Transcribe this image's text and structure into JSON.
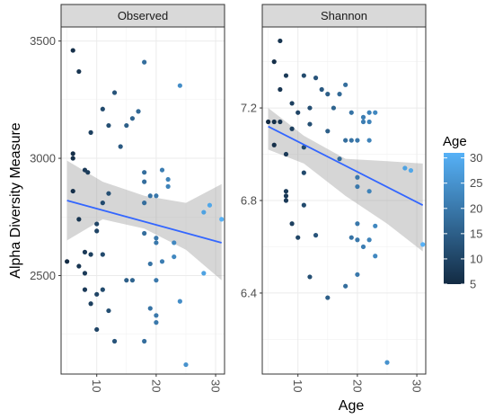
{
  "chart_data": {
    "type": "scatter",
    "ylabel": "Alpha Diversity Measure",
    "xlabel": "Age",
    "legend": {
      "title": "Age",
      "ticks": [
        5,
        10,
        15,
        20,
        25,
        30
      ],
      "range": [
        5,
        31
      ],
      "low_color": "#132B43",
      "high_color": "#56B1F7",
      "position": "right"
    },
    "panels": [
      {
        "title": "Observed",
        "xlim": [
          4,
          31.5
        ],
        "ylim": [
          2080,
          3560
        ],
        "x_ticks": [
          10,
          20,
          30
        ],
        "y_ticks": [
          2500,
          3000,
          3500
        ],
        "points": [
          {
            "x": 6,
            "y": 3460
          },
          {
            "x": 7,
            "y": 3370
          },
          {
            "x": 6,
            "y": 3020
          },
          {
            "x": 6,
            "y": 3000
          },
          {
            "x": 8,
            "y": 2950
          },
          {
            "x": 8.5,
            "y": 2940
          },
          {
            "x": 9,
            "y": 3110
          },
          {
            "x": 5,
            "y": 2560
          },
          {
            "x": 6,
            "y": 2860
          },
          {
            "x": 7,
            "y": 2740
          },
          {
            "x": 10,
            "y": 2720
          },
          {
            "x": 10,
            "y": 2690
          },
          {
            "x": 8,
            "y": 2600
          },
          {
            "x": 8,
            "y": 2510
          },
          {
            "x": 7,
            "y": 2540
          },
          {
            "x": 9,
            "y": 2590
          },
          {
            "x": 10,
            "y": 2420
          },
          {
            "x": 9,
            "y": 2380
          },
          {
            "x": 8,
            "y": 2440
          },
          {
            "x": 10,
            "y": 2270
          },
          {
            "x": 11,
            "y": 3210
          },
          {
            "x": 12,
            "y": 3140
          },
          {
            "x": 13,
            "y": 3280
          },
          {
            "x": 11,
            "y": 2810
          },
          {
            "x": 12,
            "y": 2850
          },
          {
            "x": 11,
            "y": 2590
          },
          {
            "x": 11,
            "y": 2440
          },
          {
            "x": 12,
            "y": 2350
          },
          {
            "x": 13,
            "y": 2220
          },
          {
            "x": 15,
            "y": 3140
          },
          {
            "x": 16,
            "y": 3170
          },
          {
            "x": 14,
            "y": 3050
          },
          {
            "x": 16,
            "y": 2480
          },
          {
            "x": 15,
            "y": 2480
          },
          {
            "x": 18,
            "y": 3410
          },
          {
            "x": 17,
            "y": 3200
          },
          {
            "x": 18,
            "y": 2940
          },
          {
            "x": 18,
            "y": 2900
          },
          {
            "x": 19,
            "y": 2840
          },
          {
            "x": 18,
            "y": 2810
          },
          {
            "x": 18,
            "y": 2680
          },
          {
            "x": 20,
            "y": 2660
          },
          {
            "x": 20,
            "y": 2640
          },
          {
            "x": 19,
            "y": 2550
          },
          {
            "x": 19,
            "y": 2360
          },
          {
            "x": 20,
            "y": 2330
          },
          {
            "x": 20,
            "y": 2300
          },
          {
            "x": 18,
            "y": 2220
          },
          {
            "x": 21,
            "y": 2950
          },
          {
            "x": 20,
            "y": 2840
          },
          {
            "x": 20,
            "y": 2480
          },
          {
            "x": 21,
            "y": 2560
          },
          {
            "x": 22,
            "y": 2910
          },
          {
            "x": 22,
            "y": 2880
          },
          {
            "x": 23,
            "y": 2640
          },
          {
            "x": 23,
            "y": 2580
          },
          {
            "x": 24,
            "y": 3310
          },
          {
            "x": 24,
            "y": 2390
          },
          {
            "x": 25,
            "y": 2120
          },
          {
            "x": 28,
            "y": 2770
          },
          {
            "x": 29,
            "y": 2800
          },
          {
            "x": 28,
            "y": 2510
          },
          {
            "x": 31,
            "y": 2740
          }
        ],
        "fit": {
          "x": [
            5,
            31
          ],
          "y": [
            2820,
            2640
          ],
          "ci_upper": [
            2990,
            2900,
            2840,
            2810,
            2890
          ],
          "ci_lower": [
            2650,
            2740,
            2700,
            2610,
            2480
          ],
          "ci_x": [
            5,
            11,
            18,
            25,
            31
          ]
        }
      },
      {
        "title": "Shannon",
        "xlim": [
          4,
          31.5
        ],
        "ylim": [
          6.05,
          7.55
        ],
        "x_ticks": [
          10,
          20,
          30
        ],
        "y_ticks": [
          6.4,
          6.8,
          7.2
        ],
        "points": [
          {
            "x": 7,
            "y": 7.49
          },
          {
            "x": 6,
            "y": 7.4
          },
          {
            "x": 8,
            "y": 7.34
          },
          {
            "x": 7,
            "y": 7.28
          },
          {
            "x": 9,
            "y": 7.22
          },
          {
            "x": 5,
            "y": 7.14
          },
          {
            "x": 6,
            "y": 7.14
          },
          {
            "x": 7,
            "y": 7.14
          },
          {
            "x": 9,
            "y": 7.11
          },
          {
            "x": 10,
            "y": 7.18
          },
          {
            "x": 6,
            "y": 7.04
          },
          {
            "x": 8,
            "y": 7.0
          },
          {
            "x": 8,
            "y": 6.84
          },
          {
            "x": 8,
            "y": 6.82
          },
          {
            "x": 8,
            "y": 6.8
          },
          {
            "x": 9,
            "y": 6.7
          },
          {
            "x": 10,
            "y": 6.64
          },
          {
            "x": 11,
            "y": 7.34
          },
          {
            "x": 12,
            "y": 7.2
          },
          {
            "x": 13,
            "y": 7.33
          },
          {
            "x": 12,
            "y": 7.13
          },
          {
            "x": 11,
            "y": 7.03
          },
          {
            "x": 11,
            "y": 6.92
          },
          {
            "x": 11,
            "y": 6.78
          },
          {
            "x": 13,
            "y": 6.65
          },
          {
            "x": 12,
            "y": 6.47
          },
          {
            "x": 14,
            "y": 7.28
          },
          {
            "x": 15,
            "y": 7.26
          },
          {
            "x": 16,
            "y": 7.2
          },
          {
            "x": 15,
            "y": 7.1
          },
          {
            "x": 15,
            "y": 6.38
          },
          {
            "x": 18,
            "y": 7.3
          },
          {
            "x": 17,
            "y": 7.26
          },
          {
            "x": 18,
            "y": 7.06
          },
          {
            "x": 19,
            "y": 7.06
          },
          {
            "x": 17,
            "y": 6.98
          },
          {
            "x": 18,
            "y": 6.43
          },
          {
            "x": 19,
            "y": 6.64
          },
          {
            "x": 19,
            "y": 7.18
          },
          {
            "x": 20,
            "y": 7.06
          },
          {
            "x": 20,
            "y": 6.9
          },
          {
            "x": 20,
            "y": 6.86
          },
          {
            "x": 20,
            "y": 6.7
          },
          {
            "x": 20,
            "y": 6.63
          },
          {
            "x": 20,
            "y": 6.48
          },
          {
            "x": 21,
            "y": 7.16
          },
          {
            "x": 21,
            "y": 7.14
          },
          {
            "x": 22,
            "y": 7.18
          },
          {
            "x": 22,
            "y": 7.14
          },
          {
            "x": 23,
            "y": 7.18
          },
          {
            "x": 22,
            "y": 7.06
          },
          {
            "x": 22,
            "y": 6.84
          },
          {
            "x": 22,
            "y": 6.63
          },
          {
            "x": 21,
            "y": 6.6
          },
          {
            "x": 23,
            "y": 6.69
          },
          {
            "x": 23,
            "y": 6.56
          },
          {
            "x": 25,
            "y": 6.1
          },
          {
            "x": 28,
            "y": 6.94
          },
          {
            "x": 29,
            "y": 6.93
          },
          {
            "x": 31,
            "y": 6.61
          }
        ],
        "fit": {
          "x": [
            5,
            31
          ],
          "y": [
            7.12,
            6.78
          ],
          "ci_upper": [
            7.2,
            7.08,
            6.98,
            6.97,
            6.96
          ],
          "ci_lower": [
            7.02,
            6.96,
            6.82,
            6.7,
            6.58
          ],
          "ci_x": [
            5,
            11,
            18,
            25,
            31
          ]
        }
      }
    ]
  }
}
